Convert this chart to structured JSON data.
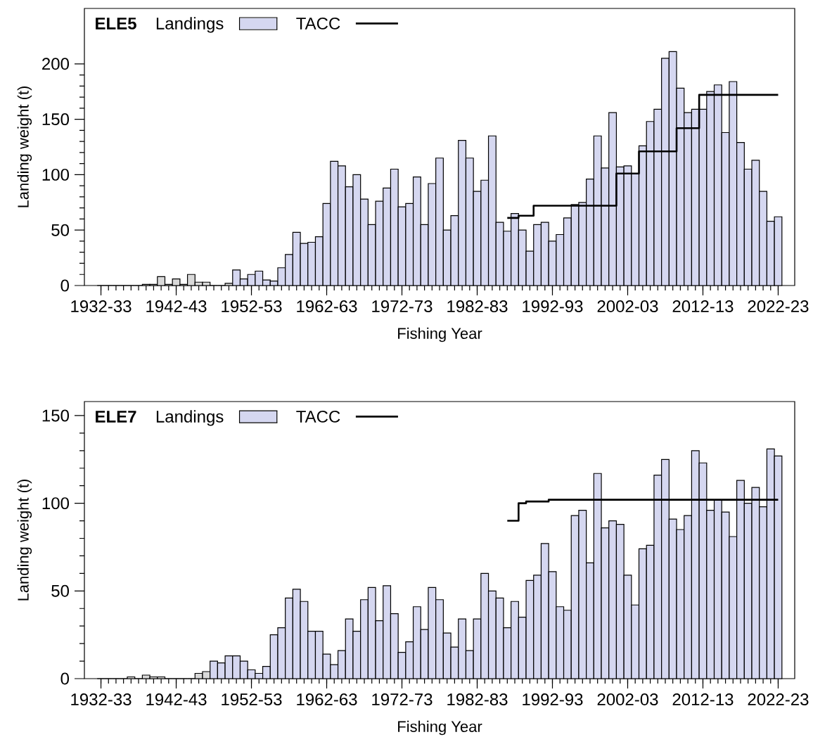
{
  "chart_data": [
    {
      "type": "bar",
      "title": "ELE5",
      "xlabel": "Fishing Year",
      "ylabel": "Landing weight (t)",
      "categories": [
        "1932-33",
        null,
        null,
        null,
        null,
        null,
        null,
        null,
        null,
        null,
        "1942-43",
        null,
        null,
        null,
        null,
        null,
        null,
        null,
        null,
        null,
        "1952-53",
        null,
        null,
        null,
        null,
        null,
        null,
        null,
        null,
        null,
        "1962-63",
        null,
        null,
        null,
        null,
        null,
        null,
        null,
        null,
        null,
        "1972-73",
        null,
        null,
        null,
        null,
        null,
        null,
        null,
        null,
        null,
        "1982-83",
        null,
        null,
        null,
        null,
        null,
        null,
        null,
        null,
        null,
        "1992-93",
        null,
        null,
        null,
        null,
        null,
        null,
        null,
        null,
        null,
        "2002-03",
        null,
        null,
        null,
        null,
        null,
        null,
        null,
        null,
        null,
        "2012-13",
        null,
        null,
        null,
        null,
        null,
        null,
        null,
        null,
        null,
        "2022-23"
      ],
      "series": [
        {
          "name": "Landings",
          "color": "#d5d7f0",
          "colors": [
            "#d5d7f0",
            "#d5d7f0",
            "#d5d7f0",
            "#d5d7f0",
            "#d5d7f0",
            "#d5d7f0",
            "#d9d9d9",
            "#d9d9d9",
            "#d9d9d9",
            "#d9d9d9",
            "#d9d9d9",
            "#d9d9d9",
            "#d9d9d9",
            "#d9d9d9",
            "#d9d9d9",
            "#d5d7f0",
            "#d5d7f0",
            "#d9d9d9",
            "#d5d7f0",
            "#d5d7f0",
            "#d5d7f0",
            "#d5d7f0",
            "#d5d7f0",
            "#d5d7f0",
            "#d5d7f0",
            "#d5d7f0",
            "#d5d7f0",
            "#d5d7f0",
            "#d5d7f0",
            "#d5d7f0",
            "#d5d7f0",
            "#d5d7f0",
            "#d5d7f0",
            "#d5d7f0",
            "#d5d7f0",
            "#d5d7f0",
            "#d5d7f0",
            "#d5d7f0",
            "#d5d7f0",
            "#d5d7f0",
            "#d5d7f0",
            "#d5d7f0",
            "#d5d7f0",
            "#d5d7f0",
            "#d5d7f0",
            "#d5d7f0",
            "#d5d7f0",
            "#d5d7f0",
            "#d5d7f0",
            "#d5d7f0",
            "#d5d7f0",
            "#d5d7f0",
            "#d5d7f0",
            "#d5d7f0",
            "#d5d7f0",
            "#d5d7f0",
            "#d5d7f0",
            "#d5d7f0",
            "#d5d7f0",
            "#d5d7f0",
            "#d5d7f0",
            "#d5d7f0",
            "#d5d7f0",
            "#d5d7f0",
            "#d5d7f0",
            "#d5d7f0",
            "#d5d7f0",
            "#d5d7f0",
            "#d5d7f0",
            "#d5d7f0",
            "#d5d7f0",
            "#d5d7f0",
            "#d5d7f0",
            "#d5d7f0",
            "#d5d7f0",
            "#d5d7f0",
            "#d5d7f0",
            "#d5d7f0",
            "#d5d7f0",
            "#d5d7f0",
            "#d5d7f0",
            "#d5d7f0",
            "#d5d7f0",
            "#d5d7f0",
            "#d5d7f0",
            "#d5d7f0",
            "#d5d7f0",
            "#d5d7f0",
            "#d5d7f0",
            "#d5d7f0",
            "#d5d7f0"
          ],
          "values": [
            0,
            0,
            0,
            0,
            0,
            0,
            1,
            1,
            8,
            1,
            6,
            1,
            10,
            3,
            3,
            0,
            0,
            2,
            14,
            6,
            10,
            13,
            5,
            4,
            16,
            28,
            48,
            38,
            39,
            44,
            74,
            112,
            108,
            89,
            100,
            78,
            55,
            76,
            88,
            105,
            71,
            74,
            98,
            55,
            92,
            115,
            50,
            63,
            131,
            115,
            85,
            95,
            135,
            57,
            49,
            65,
            50,
            31,
            55,
            57,
            40,
            46,
            61,
            73,
            75,
            96,
            135,
            106,
            156,
            107,
            108,
            101,
            126,
            148,
            159,
            205,
            211,
            178,
            156,
            159,
            159,
            175,
            181,
            138,
            184,
            129,
            105,
            113,
            85,
            58,
            62
          ]
        },
        {
          "name": "TACC",
          "type": "step",
          "color": "#000000",
          "values": [
            null,
            null,
            null,
            null,
            null,
            null,
            null,
            null,
            null,
            null,
            null,
            null,
            null,
            null,
            null,
            null,
            null,
            null,
            null,
            null,
            null,
            null,
            null,
            null,
            null,
            null,
            null,
            null,
            null,
            null,
            null,
            null,
            null,
            null,
            null,
            null,
            null,
            null,
            null,
            null,
            null,
            null,
            null,
            null,
            null,
            null,
            null,
            null,
            null,
            null,
            null,
            null,
            null,
            null,
            61,
            61,
            63,
            63,
            72,
            72,
            72,
            72,
            72,
            72,
            72,
            72,
            72,
            72,
            72,
            101,
            101,
            101,
            121,
            121,
            121,
            121,
            121,
            142,
            142,
            142,
            172,
            172,
            172,
            172,
            172,
            172,
            172,
            172,
            172,
            172,
            172
          ]
        }
      ],
      "ylim": [
        0,
        250
      ],
      "yticks": [
        0,
        50,
        100,
        150,
        200
      ],
      "legend": "top left"
    },
    {
      "type": "bar",
      "title": "ELE7",
      "xlabel": "Fishing Year",
      "ylabel": "Landing weight (t)",
      "categories": [
        "1932-33",
        null,
        null,
        null,
        null,
        null,
        null,
        null,
        null,
        null,
        "1942-43",
        null,
        null,
        null,
        null,
        null,
        null,
        null,
        null,
        null,
        "1952-53",
        null,
        null,
        null,
        null,
        null,
        null,
        null,
        null,
        null,
        "1962-63",
        null,
        null,
        null,
        null,
        null,
        null,
        null,
        null,
        null,
        "1972-73",
        null,
        null,
        null,
        null,
        null,
        null,
        null,
        null,
        null,
        "1982-83",
        null,
        null,
        null,
        null,
        null,
        null,
        null,
        null,
        null,
        "1992-93",
        null,
        null,
        null,
        null,
        null,
        null,
        null,
        null,
        null,
        "2002-03",
        null,
        null,
        null,
        null,
        null,
        null,
        null,
        null,
        null,
        "2012-13",
        null,
        null,
        null,
        null,
        null,
        null,
        null,
        null,
        null,
        "2022-23"
      ],
      "series": [
        {
          "name": "Landings",
          "color": "#d5d7f0",
          "colors": [
            "#d9d9d9",
            "#d9d9d9",
            "#d9d9d9",
            "#d9d9d9",
            "#d9d9d9",
            "#d9d9d9",
            "#d9d9d9",
            "#d9d9d9",
            "#d9d9d9",
            "#d9d9d9",
            "#d9d9d9",
            "#d9d9d9",
            "#d9d9d9",
            "#d9d9d9",
            "#d9d9d9",
            "#d5d7f0",
            "#d5d7f0",
            "#d5d7f0",
            "#d5d7f0",
            "#d5d7f0",
            "#d5d7f0",
            "#d5d7f0",
            "#d5d7f0",
            "#d5d7f0",
            "#d5d7f0",
            "#d5d7f0",
            "#d5d7f0",
            "#d5d7f0",
            "#d5d7f0",
            "#d5d7f0",
            "#d5d7f0",
            "#d5d7f0",
            "#d5d7f0",
            "#d5d7f0",
            "#d5d7f0",
            "#d5d7f0",
            "#d5d7f0",
            "#d5d7f0",
            "#d5d7f0",
            "#d5d7f0",
            "#d5d7f0",
            "#d5d7f0",
            "#d5d7f0",
            "#d5d7f0",
            "#d5d7f0",
            "#d5d7f0",
            "#d5d7f0",
            "#d5d7f0",
            "#d5d7f0",
            "#d5d7f0",
            "#d5d7f0",
            "#d5d7f0",
            "#d5d7f0",
            "#d5d7f0",
            "#d5d7f0",
            "#d5d7f0",
            "#d5d7f0",
            "#d5d7f0",
            "#d5d7f0",
            "#d5d7f0",
            "#d5d7f0",
            "#d5d7f0",
            "#d5d7f0",
            "#d5d7f0",
            "#d5d7f0",
            "#d5d7f0",
            "#d5d7f0",
            "#d5d7f0",
            "#d5d7f0",
            "#d5d7f0",
            "#d5d7f0",
            "#d5d7f0",
            "#d5d7f0",
            "#d5d7f0",
            "#d5d7f0",
            "#d5d7f0",
            "#d5d7f0",
            "#d5d7f0",
            "#d5d7f0",
            "#d5d7f0",
            "#d5d7f0",
            "#d5d7f0",
            "#d5d7f0",
            "#d5d7f0",
            "#d5d7f0",
            "#d5d7f0",
            "#d5d7f0",
            "#d5d7f0",
            "#d5d7f0",
            "#d5d7f0",
            "#d5d7f0"
          ],
          "values": [
            0,
            0,
            0,
            0,
            1,
            0,
            2,
            1,
            1,
            0,
            0,
            0,
            0,
            3,
            4,
            10,
            9,
            13,
            13,
            10,
            5,
            3,
            7,
            25,
            29,
            46,
            51,
            44,
            27,
            27,
            14,
            8,
            16,
            34,
            27,
            45,
            52,
            33,
            53,
            37,
            15,
            21,
            41,
            28,
            52,
            45,
            26,
            18,
            34,
            16,
            34,
            60,
            50,
            46,
            29,
            44,
            35,
            56,
            59,
            77,
            61,
            41,
            39,
            93,
            96,
            66,
            117,
            86,
            90,
            88,
            59,
            42,
            74,
            76,
            116,
            125,
            91,
            85,
            93,
            130,
            123,
            96,
            102,
            95,
            81,
            113,
            100,
            109,
            98,
            131,
            127
          ]
        },
        {
          "name": "TACC",
          "type": "step",
          "color": "#000000",
          "values": [
            null,
            null,
            null,
            null,
            null,
            null,
            null,
            null,
            null,
            null,
            null,
            null,
            null,
            null,
            null,
            null,
            null,
            null,
            null,
            null,
            null,
            null,
            null,
            null,
            null,
            null,
            null,
            null,
            null,
            null,
            null,
            null,
            null,
            null,
            null,
            null,
            null,
            null,
            null,
            null,
            null,
            null,
            null,
            null,
            null,
            null,
            null,
            null,
            null,
            null,
            null,
            null,
            null,
            null,
            90,
            90,
            100,
            101,
            101,
            101,
            102,
            102,
            102,
            102,
            102,
            102,
            102,
            102,
            102,
            102,
            102,
            102,
            102,
            102,
            102,
            102,
            102,
            102,
            102,
            102,
            102,
            102,
            102,
            102,
            102,
            102,
            102,
            102,
            102,
            102,
            102
          ]
        }
      ],
      "ylim": [
        0,
        158
      ],
      "yticks": [
        0,
        50,
        100,
        150
      ],
      "legend": "top left"
    }
  ]
}
